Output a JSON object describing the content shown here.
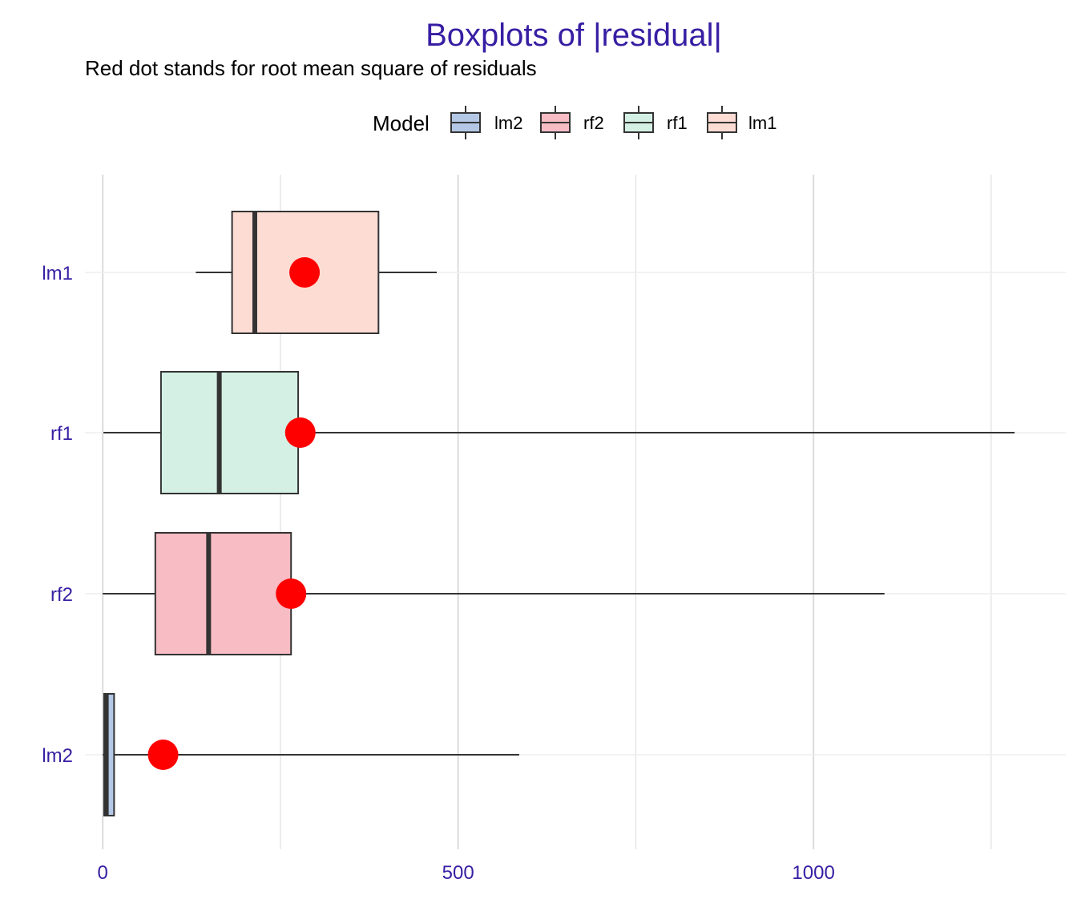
{
  "chart_data": {
    "type": "boxplot",
    "orientation": "horizontal",
    "title": "Boxplots of |residual|",
    "subtitle": "Red dot stands for root mean square of residuals",
    "legend": {
      "title": "Model",
      "placement": "top",
      "entries": [
        "lm2",
        "rf2",
        "rf1",
        "lm1"
      ]
    },
    "xlim": [
      -25,
      1355
    ],
    "x_ticks": [
      0,
      500,
      1000
    ],
    "x_tick_labels": [
      "0",
      "500",
      "1000"
    ],
    "x_minor_gridlines": [
      250,
      750,
      1250
    ],
    "grid": true,
    "colors": {
      "lm2": "#b4c8e6",
      "rf2": "#f8bcc4",
      "rf1": "#d4f0e4",
      "lm1": "#fddcd4",
      "rmse_dot": "#ff0000",
      "text_accent": "#371ea3"
    },
    "series": [
      {
        "name": "lm1",
        "whisker_low": 131,
        "q1": 182,
        "median": 214,
        "q3": 388,
        "whisker_high": 470,
        "rmse": 284
      },
      {
        "name": "rf1",
        "whisker_low": 1,
        "q1": 82,
        "median": 164,
        "q3": 275,
        "whisker_high": 1283,
        "rmse": 278
      },
      {
        "name": "rf2",
        "whisker_low": 0,
        "q1": 74,
        "median": 149,
        "q3": 265,
        "whisker_high": 1100,
        "rmse": 265
      },
      {
        "name": "lm2",
        "whisker_low": 0,
        "q1": 2,
        "median": 5,
        "q3": 16,
        "whisker_high": 586,
        "rmse": 85
      }
    ]
  }
}
